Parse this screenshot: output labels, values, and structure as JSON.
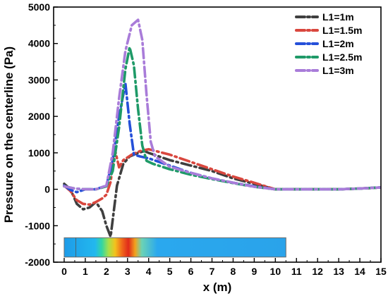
{
  "chart_data": {
    "type": "line",
    "title": "",
    "xlabel": "x (m)",
    "ylabel": "Pressure on the centerline (Pa)",
    "xlim": [
      -0.5,
      15
    ],
    "ylim": [
      -2000,
      5000
    ],
    "xticks": [
      0,
      1,
      2,
      3,
      4,
      5,
      6,
      7,
      8,
      9,
      10,
      11,
      12,
      13,
      14,
      15
    ],
    "yticks": [
      -2000,
      -1000,
      0,
      1000,
      2000,
      3000,
      4000,
      5000
    ],
    "legend_position": "top-right",
    "grid": false,
    "series": [
      {
        "name": "L1=1m",
        "color": "#3f3f3f",
        "x": [
          0,
          0.3,
          0.6,
          0.9,
          1.2,
          1.5,
          1.8,
          2.0,
          2.2,
          2.5,
          2.8,
          3.1,
          3.5,
          3.8,
          4.0,
          5.0,
          6.0,
          7.0,
          8.0,
          9.0,
          10.0,
          10.5,
          11,
          12,
          13,
          14,
          15
        ],
        "y": [
          150,
          0,
          -400,
          -550,
          -500,
          -350,
          -600,
          -1000,
          -1300,
          100,
          700,
          900,
          1000,
          1050,
          1000,
          800,
          650,
          500,
          300,
          150,
          0,
          0,
          0,
          0,
          0,
          20,
          50
        ]
      },
      {
        "name": "L1=1.5m",
        "color": "#d9473e",
        "x": [
          0,
          0.3,
          0.6,
          0.9,
          1.2,
          1.5,
          1.8,
          2.0,
          2.2,
          2.4,
          2.6,
          2.8,
          3.2,
          3.6,
          4.0,
          5.0,
          6.0,
          7.0,
          8.0,
          9.0,
          10.0,
          10.5,
          11,
          12,
          13,
          14,
          15
        ],
        "y": [
          100,
          -50,
          -300,
          -400,
          -420,
          -350,
          -250,
          -150,
          200,
          1100,
          600,
          800,
          950,
          1050,
          1100,
          950,
          750,
          550,
          350,
          180,
          0,
          0,
          0,
          0,
          0,
          20,
          50
        ]
      },
      {
        "name": "L1=2m",
        "color": "#2550d9",
        "x": [
          0,
          0.3,
          0.6,
          1.0,
          1.5,
          2.0,
          2.3,
          2.6,
          2.9,
          3.1,
          3.3,
          3.6,
          4.0,
          5.0,
          6.0,
          7.0,
          8.0,
          9.0,
          10.0,
          10.5,
          11,
          12,
          13,
          14,
          15
        ],
        "y": [
          100,
          -20,
          -80,
          0,
          0,
          100,
          800,
          2000,
          2900,
          1800,
          950,
          900,
          850,
          650,
          450,
          300,
          180,
          80,
          0,
          0,
          0,
          0,
          0,
          20,
          50
        ]
      },
      {
        "name": "L1=2.5m",
        "color": "#1f9a68",
        "x": [
          0,
          0.5,
          1.0,
          1.5,
          2.0,
          2.3,
          2.6,
          2.9,
          3.1,
          3.3,
          3.5,
          3.7,
          3.9,
          4.2,
          5.0,
          6.0,
          7.0,
          8.0,
          9.0,
          10.0,
          10.5,
          11,
          12,
          13,
          14,
          15
        ],
        "y": [
          80,
          20,
          0,
          0,
          80,
          500,
          1700,
          3300,
          3900,
          3400,
          2200,
          1200,
          780,
          700,
          550,
          400,
          280,
          170,
          70,
          0,
          0,
          0,
          0,
          0,
          20,
          50
        ]
      },
      {
        "name": "L1=3m",
        "color": "#a97cd9",
        "x": [
          0,
          0.5,
          1.0,
          1.5,
          2.0,
          2.3,
          2.6,
          2.9,
          3.2,
          3.5,
          3.7,
          3.9,
          4.1,
          4.3,
          5.0,
          6.0,
          7.0,
          8.0,
          9.0,
          10.0,
          10.5,
          11,
          12,
          13,
          14,
          15
        ],
        "y": [
          80,
          20,
          0,
          0,
          100,
          1000,
          2500,
          3800,
          4500,
          4650,
          4100,
          2600,
          1300,
          900,
          620,
          450,
          300,
          180,
          70,
          0,
          0,
          0,
          0,
          0,
          20,
          50
        ]
      }
    ]
  }
}
